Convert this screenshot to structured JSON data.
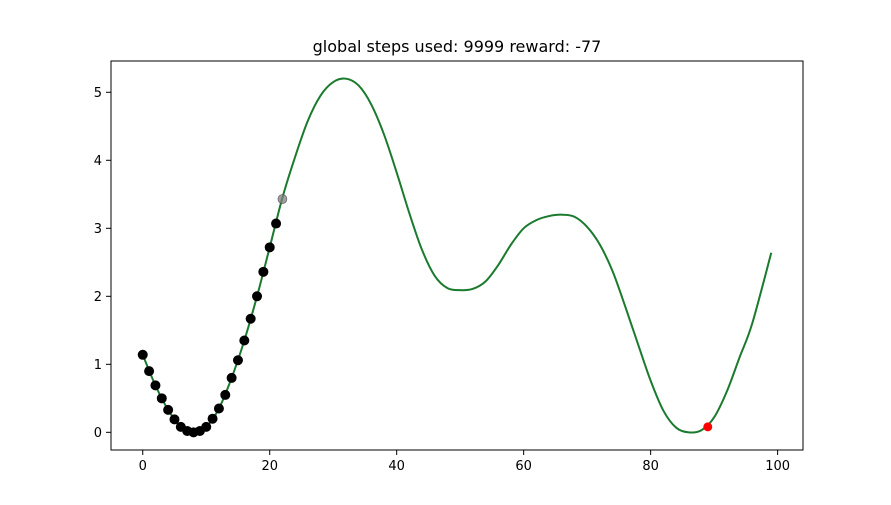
{
  "chart_data": {
    "type": "line",
    "title": "global steps used: 9999  reward: -77",
    "xlim": [
      -5,
      104
    ],
    "ylim": [
      -0.26,
      5.46
    ],
    "xticks": [
      0,
      20,
      40,
      60,
      80,
      100
    ],
    "yticks": [
      0,
      1,
      2,
      3,
      4,
      5
    ],
    "grid": false,
    "legend": "none",
    "colors": {
      "curve": "#1a7a2e",
      "history_points": "#000000",
      "current_point": "#808080",
      "target_point": "#ff0000"
    },
    "series": [
      {
        "type": "line",
        "x": [
          0,
          2,
          4,
          6,
          8,
          10,
          12,
          14,
          16,
          18,
          20,
          22,
          24,
          26,
          28,
          30,
          32,
          34,
          36,
          38,
          40,
          42,
          44,
          46,
          48,
          50,
          52,
          54,
          56,
          58,
          60,
          62,
          64,
          66,
          68,
          70,
          72,
          74,
          76,
          78,
          80,
          82,
          84,
          86,
          88,
          90,
          92,
          94,
          96,
          99
        ],
        "y": [
          1.14,
          0.69,
          0.33,
          0.08,
          0.0,
          0.08,
          0.35,
          0.8,
          1.35,
          2.0,
          2.72,
          3.45,
          4.05,
          4.58,
          4.95,
          5.15,
          5.2,
          5.1,
          4.82,
          4.38,
          3.82,
          3.22,
          2.68,
          2.3,
          2.12,
          2.09,
          2.11,
          2.22,
          2.46,
          2.76,
          3.0,
          3.12,
          3.18,
          3.2,
          3.17,
          3.02,
          2.76,
          2.37,
          1.85,
          1.3,
          0.76,
          0.32,
          0.07,
          0.0,
          0.03,
          0.22,
          0.6,
          1.1,
          1.6,
          2.64
        ]
      },
      {
        "type": "scatter",
        "x": [
          0,
          1,
          2,
          3,
          4,
          5,
          6,
          7,
          8,
          9,
          10,
          11,
          12,
          13,
          14,
          15,
          16,
          17,
          18,
          19,
          20,
          21
        ],
        "y": [
          1.14,
          0.9,
          0.69,
          0.5,
          0.33,
          0.19,
          0.08,
          0.02,
          0.0,
          0.02,
          0.08,
          0.2,
          0.35,
          0.55,
          0.8,
          1.06,
          1.35,
          1.67,
          2.0,
          2.36,
          2.72,
          3.07
        ]
      },
      {
        "type": "scatter",
        "x": [
          22
        ],
        "y": [
          3.43
        ]
      },
      {
        "type": "scatter",
        "x": [
          89
        ],
        "y": [
          0.08
        ]
      }
    ]
  }
}
